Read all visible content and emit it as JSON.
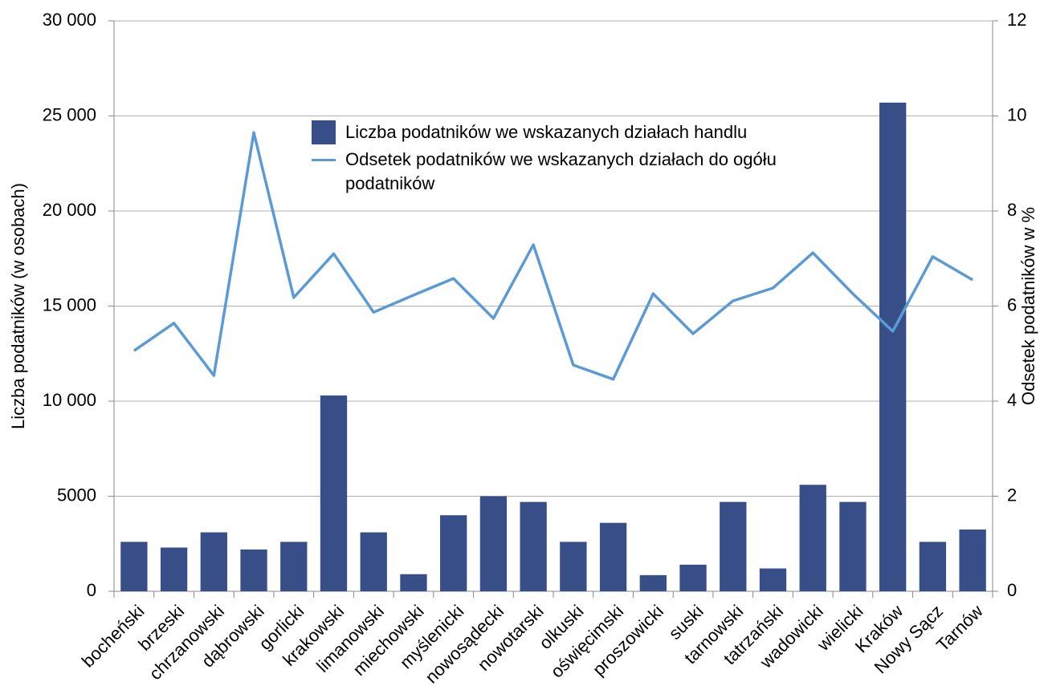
{
  "chart_data": {
    "type": "bar_line",
    "ylabel": "Liczba podatników (w osobach)",
    "y2label": "Odsetek podatników w %",
    "categories": [
      "bocheński",
      "brzeski",
      "chrzanowski",
      "dąbrowski",
      "gorlicki",
      "krakowski",
      "limanowski",
      "miechowski",
      "myślenicki",
      "nowosądecki",
      "nowotarski",
      "olkuski",
      "oświęcimski",
      "proszowicki",
      "suski",
      "tarnowski",
      "tatrzański",
      "wadowicki",
      "wielicki",
      "Kraków",
      "Nowy Sącz",
      "Tarnów"
    ],
    "series": [
      {
        "name": "Liczba podatników we wskazanych działach handlu",
        "type": "bar",
        "color": "#374e89",
        "values": [
          2600,
          2300,
          3100,
          2200,
          2600,
          10300,
          3100,
          900,
          4000,
          5000,
          4700,
          2600,
          3600,
          850,
          1400,
          4700,
          1200,
          5600,
          4700,
          25700,
          2600,
          3250
        ]
      },
      {
        "name": "Odsetek podatników we wskazanych działach do ogółu podatników",
        "type": "line",
        "axis": "y2",
        "color": "#5b9bd5",
        "values": [
          5.06,
          5.64,
          4.54,
          9.65,
          6.18,
          7.1,
          5.87,
          6.23,
          6.58,
          5.74,
          7.29,
          4.76,
          4.46,
          6.26,
          5.42,
          6.11,
          6.38,
          7.12,
          6.26,
          5.47,
          7.04,
          6.55
        ]
      }
    ],
    "ylim": [
      0,
      30000
    ],
    "yticks": [
      0,
      5000,
      {
        "value": 10000,
        "label": "10 000"
      },
      {
        "value": 15000,
        "label": "15 000"
      },
      {
        "value": 20000,
        "label": "20 000"
      },
      {
        "value": 25000,
        "label": "25 000"
      },
      {
        "value": 30000,
        "label": "30 000"
      }
    ],
    "y2lim": [
      0,
      12
    ],
    "y2ticks": [
      0,
      2,
      4,
      6,
      8,
      10,
      12
    ],
    "grid": true
  }
}
